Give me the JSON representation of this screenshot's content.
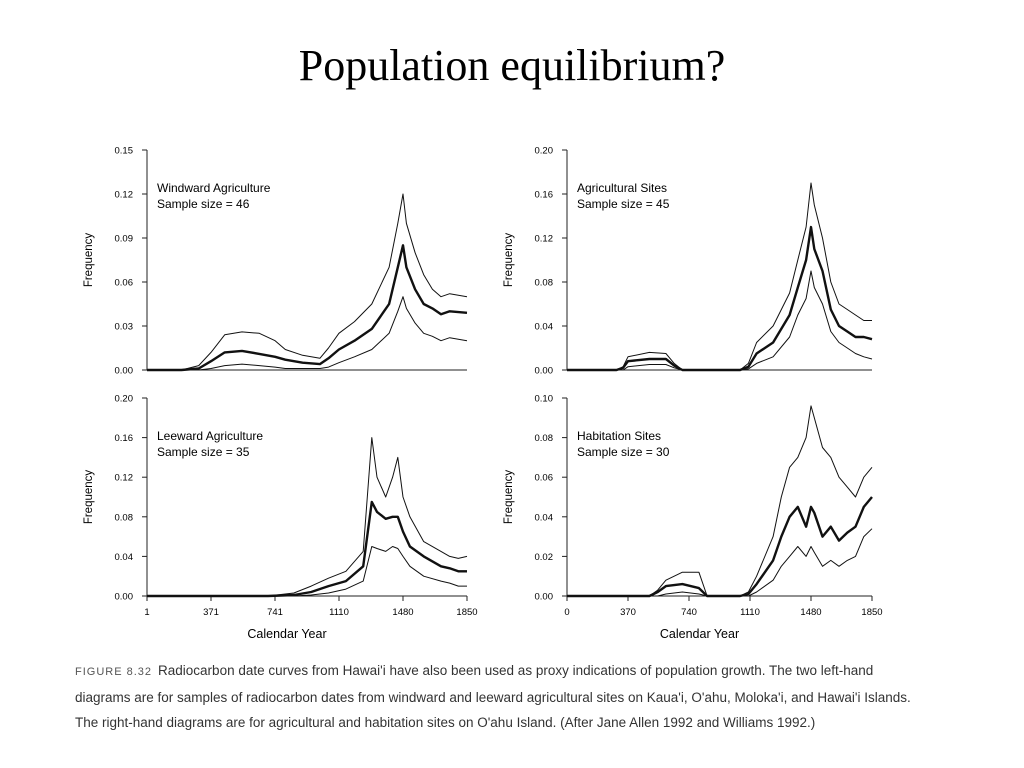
{
  "slide": {
    "title": "Population equilibrium?"
  },
  "caption": {
    "label": "FIGURE 8.32",
    "text": "Radiocarbon date curves from Hawai'i have also been used as proxy indications of population growth. The two left-hand diagrams are for samples of radiocarbon dates from windward and leeward agricultural sites on Kaua'i, O'ahu, Moloka'i, and Hawai'i Islands. The right-hand diagrams are for agricultural and habitation sites on O'ahu Island. (After Jane Allen 1992 and Williams 1992.)"
  },
  "colors": {
    "line": "#111111",
    "axis": "#222222"
  },
  "chart_data": [
    {
      "id": "windward",
      "type": "line",
      "title": "Windward Agriculture",
      "subtitle": "Sample size = 46",
      "xlabel": "",
      "ylabel": "Frequency",
      "xlim": [
        1,
        1850
      ],
      "ylim": [
        0,
        0.15
      ],
      "yticks": [
        "0.15",
        "0.12",
        "0.09",
        "0.06",
        "0.03",
        "0.00"
      ],
      "xticks": [],
      "series": [
        {
          "role": "upper",
          "x": [
            1,
            200,
            300,
            371,
            450,
            550,
            650,
            741,
            800,
            900,
            1000,
            1050,
            1110,
            1200,
            1300,
            1400,
            1450,
            1480,
            1500,
            1550,
            1600,
            1650,
            1700,
            1750,
            1850
          ],
          "y": [
            0,
            0,
            0.003,
            0.012,
            0.024,
            0.026,
            0.025,
            0.02,
            0.014,
            0.01,
            0.008,
            0.015,
            0.025,
            0.033,
            0.045,
            0.07,
            0.1,
            0.12,
            0.1,
            0.08,
            0.065,
            0.055,
            0.05,
            0.052,
            0.05
          ]
        },
        {
          "role": "mean",
          "x": [
            1,
            200,
            300,
            371,
            450,
            550,
            650,
            741,
            800,
            900,
            1000,
            1050,
            1110,
            1200,
            1300,
            1400,
            1450,
            1480,
            1500,
            1550,
            1600,
            1650,
            1700,
            1750,
            1850
          ],
          "y": [
            0,
            0,
            0.001,
            0.006,
            0.012,
            0.013,
            0.011,
            0.009,
            0.007,
            0.005,
            0.004,
            0.008,
            0.014,
            0.02,
            0.028,
            0.045,
            0.07,
            0.085,
            0.07,
            0.055,
            0.045,
            0.042,
            0.038,
            0.04,
            0.039
          ]
        },
        {
          "role": "lower",
          "x": [
            1,
            200,
            300,
            371,
            450,
            550,
            650,
            741,
            800,
            900,
            1000,
            1050,
            1110,
            1200,
            1300,
            1400,
            1450,
            1480,
            1500,
            1550,
            1600,
            1650,
            1700,
            1750,
            1850
          ],
          "y": [
            0,
            0,
            0,
            0.001,
            0.003,
            0.004,
            0.003,
            0.002,
            0.001,
            0.001,
            0.001,
            0.002,
            0.005,
            0.009,
            0.014,
            0.025,
            0.04,
            0.05,
            0.042,
            0.032,
            0.025,
            0.023,
            0.02,
            0.022,
            0.02
          ]
        }
      ]
    },
    {
      "id": "agricultural",
      "type": "line",
      "title": "Agricultural Sites",
      "subtitle": "Sample size = 45",
      "xlabel": "",
      "ylabel": "Frequency",
      "xlim": [
        0,
        1850
      ],
      "ylim": [
        0,
        0.2
      ],
      "yticks": [
        "0.20",
        "0.16",
        "0.12",
        "0.08",
        "0.04",
        "0.00"
      ],
      "xticks": [],
      "series": [
        {
          "role": "upper",
          "x": [
            0,
            300,
            340,
            370,
            500,
            600,
            650,
            700,
            900,
            1050,
            1100,
            1150,
            1250,
            1350,
            1400,
            1450,
            1480,
            1500,
            1550,
            1600,
            1650,
            1700,
            1750,
            1800,
            1850
          ],
          "y": [
            0,
            0,
            0.003,
            0.012,
            0.016,
            0.015,
            0.006,
            0,
            0,
            0,
            0.006,
            0.025,
            0.04,
            0.07,
            0.1,
            0.13,
            0.17,
            0.15,
            0.12,
            0.08,
            0.06,
            0.055,
            0.05,
            0.045,
            0.045
          ]
        },
        {
          "role": "mean",
          "x": [
            0,
            300,
            340,
            370,
            500,
            600,
            650,
            700,
            900,
            1050,
            1100,
            1150,
            1250,
            1350,
            1400,
            1450,
            1480,
            1500,
            1550,
            1600,
            1650,
            1700,
            1750,
            1800,
            1850
          ],
          "y": [
            0,
            0,
            0.002,
            0.008,
            0.01,
            0.01,
            0.004,
            0,
            0,
            0,
            0.003,
            0.015,
            0.025,
            0.05,
            0.075,
            0.1,
            0.13,
            0.11,
            0.09,
            0.055,
            0.04,
            0.035,
            0.03,
            0.03,
            0.028
          ]
        },
        {
          "role": "lower",
          "x": [
            0,
            300,
            340,
            370,
            500,
            600,
            650,
            700,
            900,
            1050,
            1100,
            1150,
            1250,
            1350,
            1400,
            1450,
            1480,
            1500,
            1550,
            1600,
            1650,
            1700,
            1750,
            1800,
            1850
          ],
          "y": [
            0,
            0,
            0,
            0.003,
            0.005,
            0.005,
            0.002,
            0,
            0,
            0,
            0.001,
            0.006,
            0.012,
            0.03,
            0.05,
            0.065,
            0.09,
            0.075,
            0.06,
            0.035,
            0.025,
            0.02,
            0.015,
            0.012,
            0.01
          ]
        }
      ]
    },
    {
      "id": "leeward",
      "type": "line",
      "title": "Leeward Agriculture",
      "subtitle": "Sample size = 35",
      "xlabel": "Calendar Year",
      "ylabel": "Frequency",
      "xlim": [
        1,
        1850
      ],
      "ylim": [
        0,
        0.2
      ],
      "yticks": [
        "0.20",
        "0.16",
        "0.12",
        "0.08",
        "0.04",
        "0.00"
      ],
      "xticks": [
        "1",
        "371",
        "741",
        "1110",
        "1480",
        "1850"
      ],
      "series": [
        {
          "role": "upper",
          "x": [
            1,
            700,
            850,
            950,
            1050,
            1150,
            1250,
            1300,
            1330,
            1380,
            1420,
            1450,
            1480,
            1520,
            1600,
            1700,
            1750,
            1800,
            1850
          ],
          "y": [
            0,
            0,
            0.003,
            0.01,
            0.018,
            0.025,
            0.045,
            0.16,
            0.12,
            0.1,
            0.12,
            0.14,
            0.1,
            0.08,
            0.055,
            0.045,
            0.04,
            0.038,
            0.04
          ]
        },
        {
          "role": "mean",
          "x": [
            1,
            700,
            850,
            950,
            1050,
            1150,
            1250,
            1300,
            1330,
            1380,
            1420,
            1450,
            1480,
            1520,
            1600,
            1700,
            1750,
            1800,
            1850
          ],
          "y": [
            0,
            0,
            0.001,
            0.004,
            0.01,
            0.015,
            0.03,
            0.095,
            0.085,
            0.078,
            0.08,
            0.08,
            0.065,
            0.05,
            0.04,
            0.03,
            0.028,
            0.025,
            0.025
          ]
        },
        {
          "role": "lower",
          "x": [
            1,
            700,
            850,
            950,
            1050,
            1150,
            1250,
            1300,
            1330,
            1380,
            1420,
            1450,
            1480,
            1520,
            1600,
            1700,
            1750,
            1800,
            1850
          ],
          "y": [
            0,
            0,
            0,
            0.001,
            0.003,
            0.007,
            0.015,
            0.05,
            0.048,
            0.045,
            0.05,
            0.048,
            0.04,
            0.03,
            0.02,
            0.015,
            0.013,
            0.01,
            0.01
          ]
        }
      ]
    },
    {
      "id": "habitation",
      "type": "line",
      "title": "Habitation Sites",
      "subtitle": "Sample size = 30",
      "xlabel": "Calendar Year",
      "ylabel": "Frequency",
      "xlim": [
        0,
        1850
      ],
      "ylim": [
        0,
        0.1
      ],
      "yticks": [
        "0.10",
        "0.08",
        "0.06",
        "0.04",
        "0.02",
        "0.00"
      ],
      "xticks": [
        "0",
        "370",
        "740",
        "1110",
        "1480",
        "1850"
      ],
      "series": [
        {
          "role": "upper",
          "x": [
            0,
            500,
            550,
            600,
            700,
            800,
            850,
            1050,
            1100,
            1150,
            1250,
            1300,
            1350,
            1400,
            1450,
            1480,
            1500,
            1550,
            1600,
            1650,
            1700,
            1750,
            1800,
            1850
          ],
          "y": [
            0,
            0,
            0.003,
            0.008,
            0.012,
            0.012,
            0,
            0,
            0.002,
            0.01,
            0.03,
            0.05,
            0.065,
            0.07,
            0.08,
            0.096,
            0.09,
            0.075,
            0.07,
            0.06,
            0.055,
            0.05,
            0.06,
            0.065
          ]
        },
        {
          "role": "mean",
          "x": [
            0,
            500,
            550,
            600,
            700,
            800,
            850,
            1050,
            1100,
            1150,
            1250,
            1300,
            1350,
            1400,
            1450,
            1480,
            1500,
            1550,
            1600,
            1650,
            1700,
            1750,
            1800,
            1850
          ],
          "y": [
            0,
            0,
            0.002,
            0.005,
            0.006,
            0.004,
            0,
            0,
            0.001,
            0.006,
            0.018,
            0.03,
            0.04,
            0.045,
            0.035,
            0.045,
            0.042,
            0.03,
            0.035,
            0.028,
            0.032,
            0.035,
            0.045,
            0.05
          ]
        },
        {
          "role": "lower",
          "x": [
            0,
            500,
            550,
            600,
            700,
            800,
            850,
            1050,
            1100,
            1150,
            1250,
            1300,
            1350,
            1400,
            1450,
            1480,
            1500,
            1550,
            1600,
            1650,
            1700,
            1750,
            1800,
            1850
          ],
          "y": [
            0,
            0,
            0,
            0.001,
            0.002,
            0.001,
            0,
            0,
            0,
            0.002,
            0.008,
            0.015,
            0.02,
            0.025,
            0.02,
            0.025,
            0.022,
            0.015,
            0.018,
            0.015,
            0.018,
            0.02,
            0.03,
            0.034
          ]
        }
      ]
    }
  ]
}
